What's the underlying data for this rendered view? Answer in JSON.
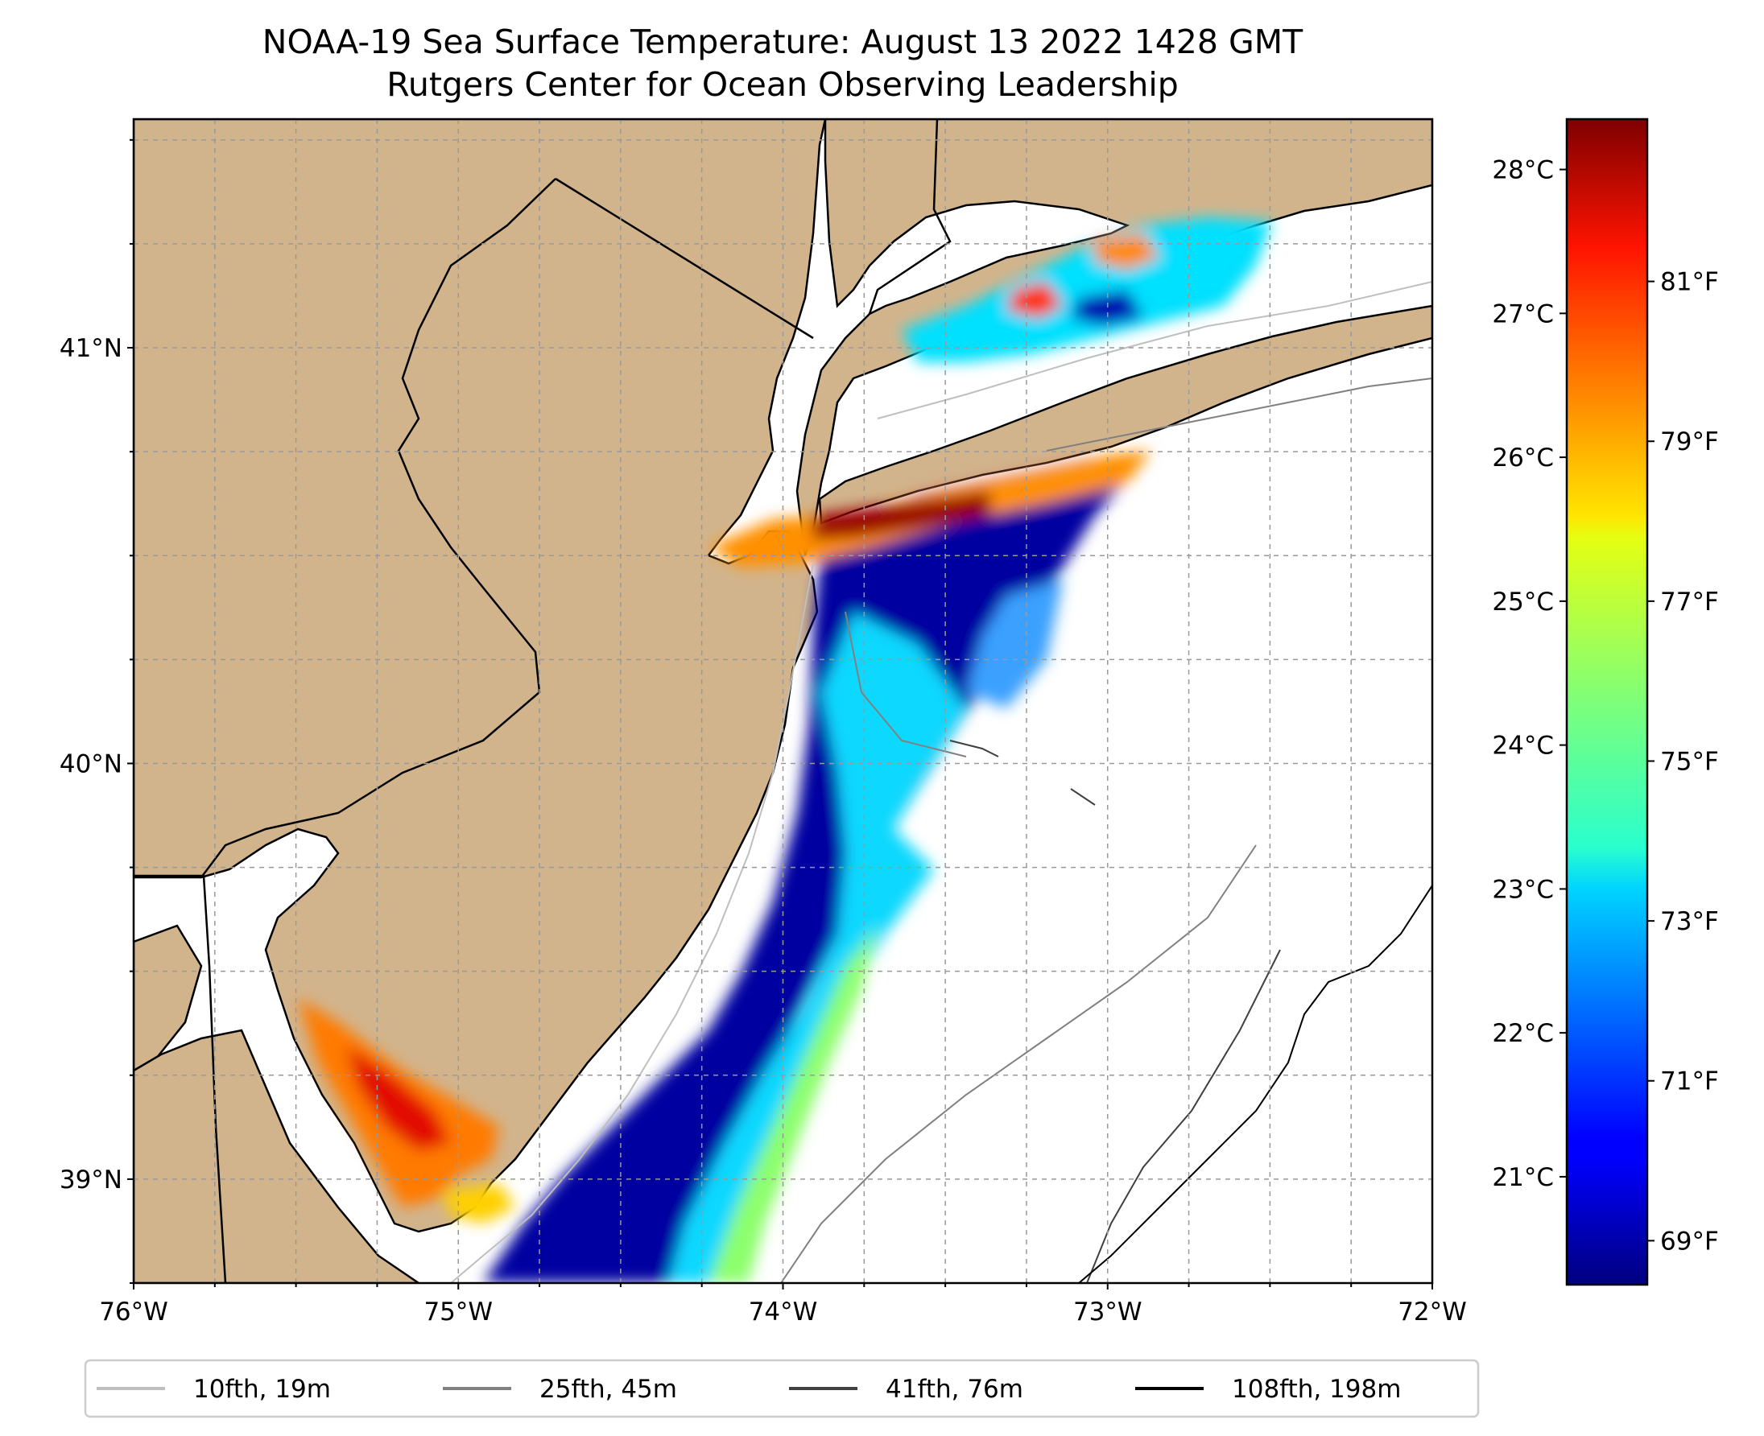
{
  "title": {
    "line1": "NOAA-19 Sea Surface Temperature: August 13 2022 1428 GMT",
    "line2": "Rutgers Center for Ocean Observing Leadership"
  },
  "map": {
    "lon_range": [
      -76,
      -72
    ],
    "lat_range": [
      38.75,
      41.55
    ],
    "lon_ticks": [
      {
        "value": -76,
        "label": "76°W"
      },
      {
        "value": -75,
        "label": "75°W"
      },
      {
        "value": -74,
        "label": "74°W"
      },
      {
        "value": -73,
        "label": "73°W"
      },
      {
        "value": -72,
        "label": "72°W"
      }
    ],
    "lat_ticks": [
      {
        "value": 39,
        "label": "39°N"
      },
      {
        "value": 40,
        "label": "40°N"
      },
      {
        "value": 41,
        "label": "41°N"
      }
    ],
    "gridlines": true,
    "land_color": "#d2b48c",
    "ocean_color": "#ffffff",
    "colormap": "jet"
  },
  "colorbar": {
    "celsius_range": [
      20.25,
      28.35
    ],
    "celsius_ticks": [
      {
        "value": 21,
        "label": "21°C"
      },
      {
        "value": 22,
        "label": "22°C"
      },
      {
        "value": 23,
        "label": "23°C"
      },
      {
        "value": 24,
        "label": "24°C"
      },
      {
        "value": 25,
        "label": "25°C"
      },
      {
        "value": 26,
        "label": "26°C"
      },
      {
        "value": 27,
        "label": "27°C"
      },
      {
        "value": 28,
        "label": "28°C"
      }
    ],
    "fahrenheit_ticks": [
      {
        "value": 69,
        "label": "69°F"
      },
      {
        "value": 71,
        "label": "71°F"
      },
      {
        "value": 73,
        "label": "73°F"
      },
      {
        "value": 75,
        "label": "75°F"
      },
      {
        "value": 77,
        "label": "77°F"
      },
      {
        "value": 79,
        "label": "79°F"
      },
      {
        "value": 81,
        "label": "81°F"
      }
    ]
  },
  "legend": {
    "placement": "bottom",
    "items": [
      {
        "label": "10fth, 19m",
        "color": "#bfbfbf"
      },
      {
        "label": "25fth, 45m",
        "color": "#808080"
      },
      {
        "label": "41fth, 76m",
        "color": "#404040"
      },
      {
        "label": "108fth, 198m",
        "color": "#000000"
      }
    ]
  }
}
